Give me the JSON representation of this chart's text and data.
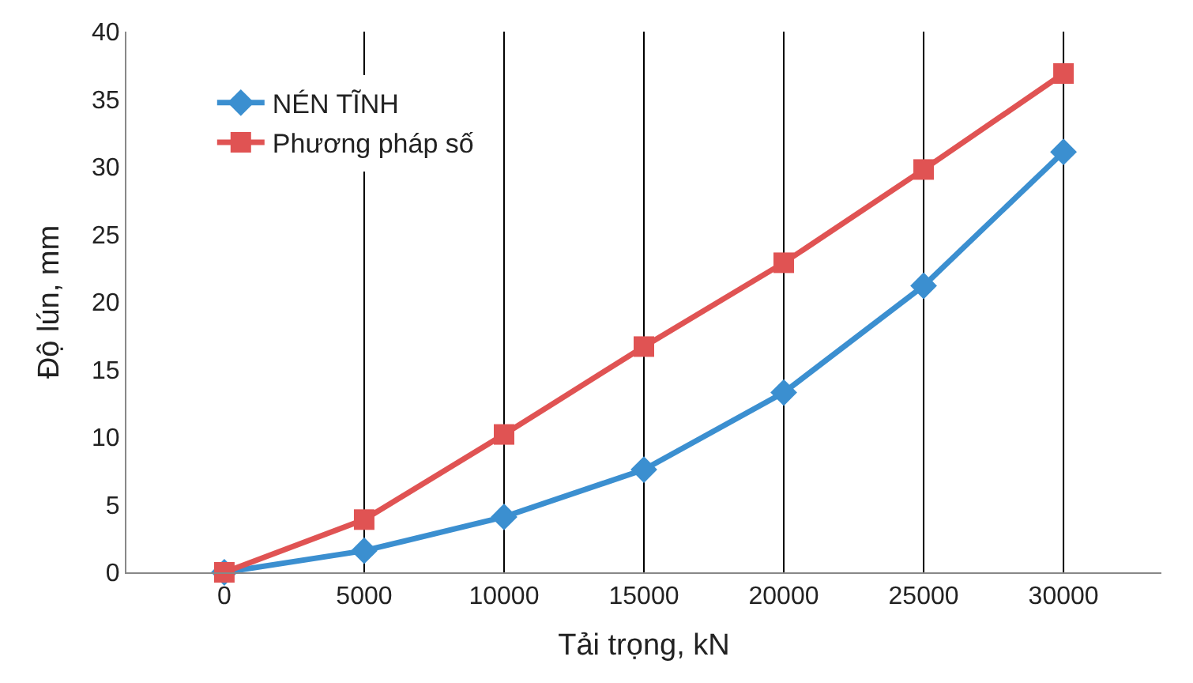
{
  "chart_data": {
    "type": "line",
    "xlabel": "Tải trọng, kN",
    "ylabel": "Độ lún, mm",
    "categories": [
      "0",
      "5000",
      "10000",
      "15000",
      "20000",
      "25000",
      "30000"
    ],
    "series": [
      {
        "name": "NÉN TĨNH",
        "color": "#3b8fd0",
        "marker": "diamond",
        "values": [
          0,
          1.6,
          4.1,
          7.6,
          13.3,
          21.2,
          31.1
        ]
      },
      {
        "name": "Phương pháp số",
        "color": "#e05353",
        "marker": "square",
        "values": [
          0,
          3.9,
          10.2,
          16.7,
          22.9,
          29.8,
          36.9
        ]
      }
    ],
    "ylim": [
      0,
      40
    ],
    "yticks": [
      0,
      5,
      10,
      15,
      20,
      25,
      30,
      35,
      40
    ],
    "grid": false,
    "legend": "top left",
    "line_style": "solid",
    "ref_lines": [
      {
        "axis": "x",
        "value": "5000",
        "color": "#000000"
      },
      {
        "axis": "x",
        "value": "10000",
        "color": "#000000"
      },
      {
        "axis": "x",
        "value": "15000",
        "color": "#000000"
      },
      {
        "axis": "x",
        "value": "20000",
        "color": "#000000"
      },
      {
        "axis": "x",
        "value": "25000",
        "color": "#000000"
      },
      {
        "axis": "x",
        "value": "30000",
        "color": "#000000"
      }
    ]
  }
}
